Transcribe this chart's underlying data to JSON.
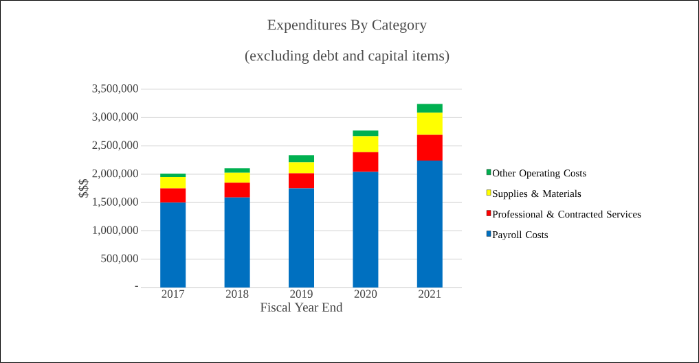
{
  "chart_data": {
    "type": "bar",
    "stacked": true,
    "title": "Expenditures By Category",
    "subtitle": "(excluding debt and capital items)",
    "xlabel": "Fiscal Year End",
    "ylabel": "$$$",
    "categories": [
      "2017",
      "2018",
      "2019",
      "2020",
      "2021"
    ],
    "series": [
      {
        "name": "Payroll Costs",
        "color": "#0070c0",
        "values": [
          1500000,
          1590000,
          1750000,
          2040000,
          2240000
        ]
      },
      {
        "name": "Professional & Contracted Services",
        "color": "#ff0000",
        "values": [
          250000,
          260000,
          265000,
          350000,
          455000
        ]
      },
      {
        "name": "Supplies & Materials",
        "color": "#ffff00",
        "values": [
          200000,
          175000,
          195000,
          280000,
          390000
        ]
      },
      {
        "name": "Other Operating Costs",
        "color": "#00b050",
        "values": [
          60000,
          80000,
          125000,
          100000,
          155000
        ]
      }
    ],
    "ylim": [
      0,
      3500000
    ],
    "yticks": [
      {
        "value": 0,
        "label": "-"
      },
      {
        "value": 500000,
        "label": "500,000"
      },
      {
        "value": 1000000,
        "label": "1,000,000"
      },
      {
        "value": 1500000,
        "label": "1,500,000"
      },
      {
        "value": 2000000,
        "label": "2,000,000"
      },
      {
        "value": 2500000,
        "label": "2,500,000"
      },
      {
        "value": 3000000,
        "label": "3,000,000"
      },
      {
        "value": 3500000,
        "label": "3,500,000"
      }
    ],
    "grid": "y",
    "legend": "right"
  }
}
